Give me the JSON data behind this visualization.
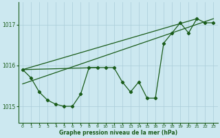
{
  "title": "Graphe pression niveau de la mer (hPa)",
  "background_color": "#cce8f0",
  "grid_color": "#aaccd8",
  "line_color": "#1a5c1a",
  "xlim": [
    -0.5,
    23.5
  ],
  "ylim": [
    1014.6,
    1017.55
  ],
  "yticks": [
    1015,
    1016,
    1017
  ],
  "xticks": [
    0,
    1,
    2,
    3,
    4,
    5,
    6,
    7,
    8,
    9,
    10,
    11,
    12,
    13,
    14,
    15,
    16,
    17,
    18,
    19,
    20,
    21,
    22,
    23
  ],
  "hours": [
    0,
    1,
    2,
    3,
    4,
    5,
    6,
    7,
    8,
    9,
    10,
    11,
    12,
    13,
    14,
    15,
    16,
    17,
    18,
    19,
    20,
    21,
    22,
    23
  ],
  "pressure": [
    1015.9,
    1015.7,
    1015.35,
    1015.15,
    1015.05,
    1015.0,
    1015.0,
    1015.3,
    1015.95,
    1015.95,
    1015.95,
    1015.95,
    1015.6,
    1015.35,
    1015.6,
    1015.2,
    1015.2,
    1016.55,
    1016.8,
    1017.05,
    1016.8,
    1017.15,
    1017.05,
    1017.05
  ],
  "trend_x": [
    0,
    23
  ],
  "trend_y": [
    1015.55,
    1017.15
  ],
  "extra_line1_x": [
    0,
    21
  ],
  "extra_line1_y": [
    1015.9,
    1017.15
  ],
  "extra_line2_x": [
    0,
    9
  ],
  "extra_line2_y": [
    1015.9,
    1015.95
  ]
}
